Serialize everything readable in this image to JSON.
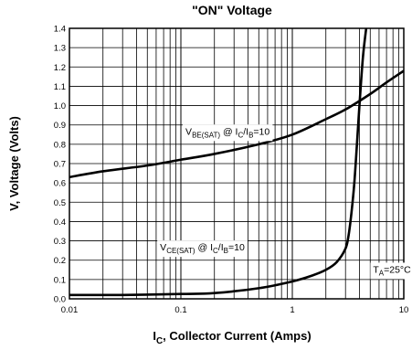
{
  "chart_data": {
    "type": "line",
    "title": "\"ON\" Voltage",
    "xlabel": {
      "main": "I",
      "sub": "C",
      "rest": ", Collector Current (Amps)"
    },
    "ylabel": "V, Voltage (Volts)",
    "xscale": "log",
    "xlim": [
      0.01,
      10
    ],
    "ylim": [
      0,
      1.4
    ],
    "x_ticks": [
      {
        "value": 0.01,
        "label": "0.01"
      },
      {
        "value": 0.1,
        "label": "0.1"
      },
      {
        "value": 1,
        "label": "1"
      },
      {
        "value": 10,
        "label": "10"
      }
    ],
    "y_ticks": [
      {
        "value": 0.0,
        "label": "0.0"
      },
      {
        "value": 0.1,
        "label": "0.1"
      },
      {
        "value": 0.2,
        "label": "0.2"
      },
      {
        "value": 0.3,
        "label": "0.3"
      },
      {
        "value": 0.4,
        "label": "0.4"
      },
      {
        "value": 0.5,
        "label": "0.5"
      },
      {
        "value": 0.6,
        "label": "0.6"
      },
      {
        "value": 0.7,
        "label": "0.7"
      },
      {
        "value": 0.8,
        "label": "0.8"
      },
      {
        "value": 0.9,
        "label": "0.9"
      },
      {
        "value": 1.0,
        "label": "1.0"
      },
      {
        "value": 1.1,
        "label": "1.1"
      },
      {
        "value": 1.2,
        "label": "1.2"
      },
      {
        "value": 1.3,
        "label": "1.3"
      },
      {
        "value": 1.4,
        "label": "1.4"
      }
    ],
    "grid": true,
    "series": [
      {
        "name": "VBE(SAT) @ IC/IB=10",
        "x": [
          0.01,
          0.02,
          0.05,
          0.1,
          0.2,
          0.5,
          1,
          2,
          3,
          5,
          7,
          10
        ],
        "y": [
          0.63,
          0.66,
          0.69,
          0.72,
          0.75,
          0.8,
          0.85,
          0.93,
          0.98,
          1.06,
          1.12,
          1.18
        ]
      },
      {
        "name": "VCE(SAT) @ IC/IB=10",
        "x": [
          0.01,
          0.03,
          0.1,
          0.2,
          0.5,
          1,
          1.5,
          2,
          2.5,
          3,
          3.2,
          3.4,
          3.6,
          3.8,
          4.0,
          4.3,
          4.6
        ],
        "y": [
          0.02,
          0.02,
          0.025,
          0.03,
          0.055,
          0.09,
          0.12,
          0.15,
          0.19,
          0.26,
          0.33,
          0.45,
          0.6,
          0.8,
          1.0,
          1.25,
          1.4
        ]
      }
    ],
    "annotations": [
      {
        "id": "vbe",
        "main": "V",
        "sub1": "BE(SAT)",
        "mid": " @ I",
        "sub2": "C",
        "slash": "/I",
        "sub3": "B",
        "tail": "=10",
        "x": 0.11,
        "y": 0.85
      },
      {
        "id": "vce",
        "main": "V",
        "sub1": "CE(SAT)",
        "mid": " @ I",
        "sub2": "C",
        "slash": "/I",
        "sub3": "B",
        "tail": "=10",
        "x": 0.065,
        "y": 0.25
      },
      {
        "id": "ta",
        "main": "T",
        "sub1": "A",
        "tail": "=25°C",
        "x": 5.3,
        "y": 0.135
      }
    ]
  }
}
